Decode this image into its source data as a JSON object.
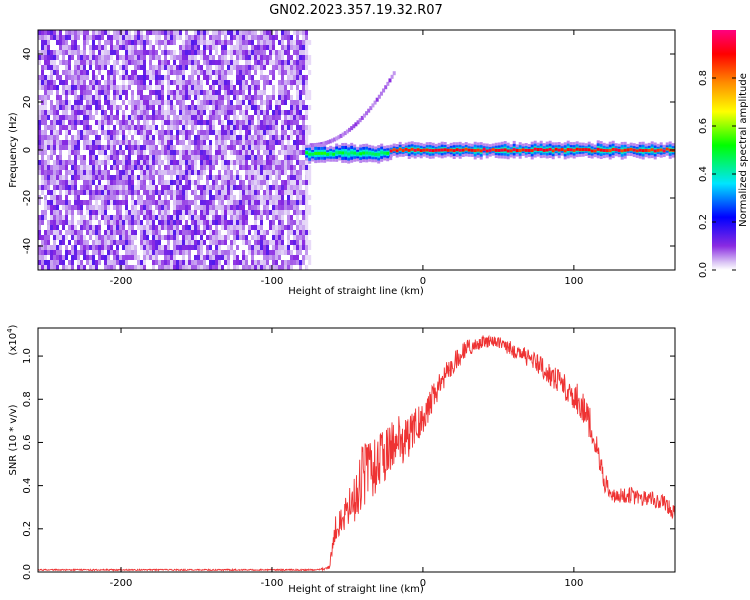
{
  "title": "GN02.2023.357.19.32.R07",
  "chart_data": [
    {
      "type": "heatmap",
      "xlabel": "Height of straight line (km)",
      "ylabel": "Frequency (Hz)",
      "xlim": [
        -255,
        167
      ],
      "ylim": [
        -50,
        50
      ],
      "xticks": [
        -200,
        -100,
        0,
        100
      ],
      "yticks": [
        -40,
        -20,
        0,
        20,
        40
      ],
      "colorbar": {
        "label": "Normalized spectral amplitude",
        "range": [
          0.0,
          1.0
        ],
        "ticks": [
          "0.0",
          "0.2",
          "0.4",
          "0.6",
          "0.8"
        ],
        "colormap": [
          "#ffffff",
          "#8a2be2",
          "#0000ff",
          "#00e5ff",
          "#00ff00",
          "#ffff00",
          "#ff8c00",
          "#ff0000",
          "#ff007f"
        ]
      },
      "regions": [
        {
          "name": "noise",
          "x_range": [
            -255,
            -78
          ],
          "freq_range": [
            -50,
            50
          ],
          "amplitude": [
            0.0,
            0.15
          ]
        },
        {
          "name": "carrier-weak",
          "x_range": [
            -78,
            -22
          ],
          "freq_center": -1.5,
          "amplitude": 0.5
        },
        {
          "name": "carrier-strong",
          "x_range": [
            -22,
            167
          ],
          "freq_center": 0,
          "amplitude": 0.9
        },
        {
          "name": "diagonal-feature",
          "x_range": [
            -75,
            -20
          ],
          "freq_range": [
            2,
            32
          ],
          "amplitude": 0.15
        }
      ]
    },
    {
      "type": "line",
      "xlabel": "Height of straight line (km)",
      "ylabel": "SNR (10 * v/v)",
      "exponent": "(x10",
      "exponent_power": "4",
      "exponent_close": ")",
      "xlim": [
        -255,
        167
      ],
      "ylim": [
        0,
        1.13
      ],
      "xticks": [
        -200,
        -100,
        0,
        100
      ],
      "yticks": [
        "0.0",
        "0.2",
        "0.4",
        "0.6",
        "0.8",
        "1.0"
      ],
      "color": "#ee3333",
      "x": [
        -255,
        -70,
        -62,
        -58,
        -52,
        -45,
        -40,
        -30,
        -20,
        -10,
        0,
        10,
        20,
        30,
        40,
        50,
        60,
        70,
        80,
        90,
        100,
        105,
        110,
        115,
        120,
        125,
        130,
        140,
        150,
        160,
        167
      ],
      "y": [
        0.01,
        0.01,
        0.02,
        0.2,
        0.25,
        0.35,
        0.45,
        0.5,
        0.58,
        0.62,
        0.72,
        0.85,
        0.97,
        1.04,
        1.07,
        1.06,
        1.03,
        0.99,
        0.94,
        0.88,
        0.82,
        0.78,
        0.7,
        0.58,
        0.42,
        0.36,
        0.36,
        0.35,
        0.34,
        0.32,
        0.28
      ],
      "noise": [
        0.003,
        0.003,
        0.01,
        0.06,
        0.08,
        0.12,
        0.15,
        0.14,
        0.12,
        0.1,
        0.08,
        0.06,
        0.05,
        0.04,
        0.03,
        0.03,
        0.04,
        0.04,
        0.05,
        0.06,
        0.07,
        0.07,
        0.08,
        0.06,
        0.05,
        0.04,
        0.04,
        0.04,
        0.04,
        0.04,
        0.04
      ]
    }
  ]
}
